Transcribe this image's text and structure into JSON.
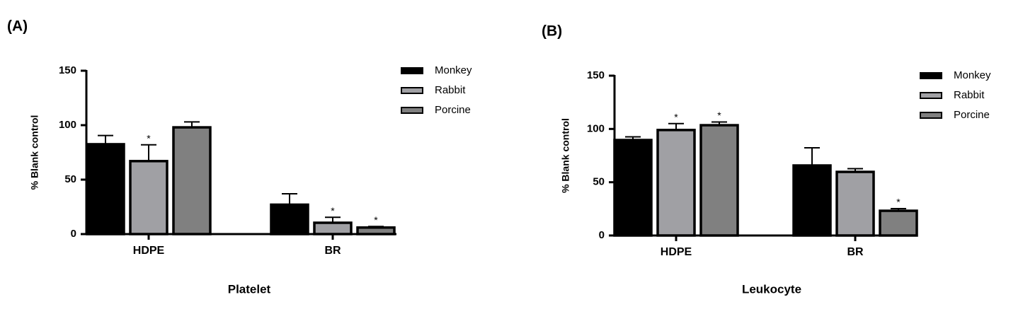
{
  "chart_data": [
    {
      "type": "bar",
      "panel": "(A)",
      "xlabel": "Platelet",
      "ylabel": "% Blank control",
      "categories": [
        "HDPE",
        "BR"
      ],
      "series": [
        {
          "name": "Monkey",
          "color": "#000000",
          "values": [
            82.5,
            27
          ],
          "errors": [
            8,
            10
          ],
          "labels": [
            null,
            null
          ]
        },
        {
          "name": "Rabbit",
          "color": "#a0a0a4",
          "values": [
            67,
            10.4
          ],
          "errors": [
            15,
            5
          ],
          "labels": [
            "*",
            "*"
          ]
        },
        {
          "name": "Porcine",
          "color": "#808080",
          "values": [
            98,
            6
          ],
          "errors": [
            5,
            1
          ],
          "labels": [
            null,
            "*"
          ]
        }
      ],
      "ylim": [
        0,
        150
      ],
      "yticks": [
        0,
        50,
        100,
        150
      ],
      "legend": "outside-right"
    },
    {
      "type": "bar",
      "panel": "(B)",
      "xlabel": "Leukocyte",
      "ylabel": "% Blank control",
      "categories": [
        "HDPE",
        "BR"
      ],
      "series": [
        {
          "name": "Monkey",
          "color": "#000000",
          "values": [
            89.6,
            65.7
          ],
          "errors": [
            3,
            16.6
          ],
          "labels": [
            null,
            null
          ]
        },
        {
          "name": "Rabbit",
          "color": "#a0a0a4",
          "values": [
            99,
            59.7
          ],
          "errors": [
            6,
            3
          ],
          "labels": [
            "*",
            null
          ]
        },
        {
          "name": "Porcine",
          "color": "#808080",
          "values": [
            103.5,
            23.2
          ],
          "errors": [
            3,
            2
          ],
          "labels": [
            "*",
            "*"
          ]
        }
      ],
      "ylim": [
        0,
        150
      ],
      "yticks": [
        0,
        50,
        100,
        150
      ],
      "legend": "outside-right"
    }
  ]
}
